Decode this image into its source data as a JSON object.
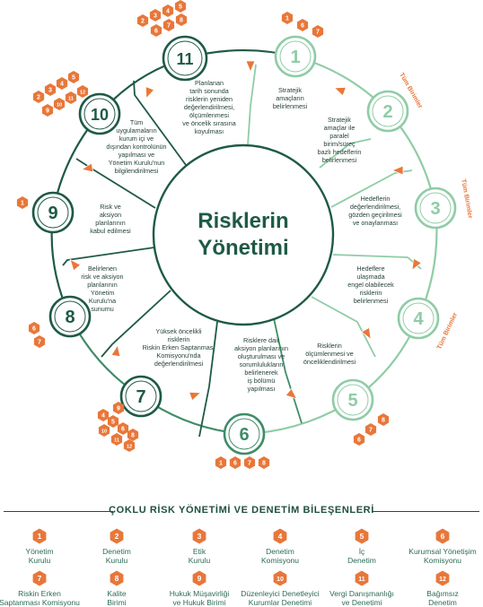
{
  "center_title": [
    "Risklerin",
    "Yönetimi"
  ],
  "steps": [
    {
      "num": "1",
      "text": "Stratejik\namaçların\nbelirlenmesi",
      "badges": [
        "1",
        "6",
        "7"
      ],
      "side_label": ""
    },
    {
      "num": "2",
      "text": "Stratejik\namaçlar ile\nparalel\nbirim/süreç\nbazlı hedeflerin\nbelirlenmesi",
      "badges": [],
      "side_label": "Tüm Birimler"
    },
    {
      "num": "3",
      "text": "Hedeflerin\ndeğerlendirilmesi,\ngözden geçirilmesi\nve onaylanması",
      "badges": [],
      "side_label": "Tüm Birimler"
    },
    {
      "num": "4",
      "text": "Hedeflere\nulaşmada\nengel olabilecek\nrisklerin\nbelirlenmesi",
      "badges": [],
      "side_label": "Tüm Birimler"
    },
    {
      "num": "5",
      "text": "Risklerin\nölçümlenmesi ve\nönceliklendirilmesi",
      "badges": [
        "6",
        "7",
        "8"
      ],
      "side_label": ""
    },
    {
      "num": "6",
      "text": "Risklere dair\naksiyon planlarının\noluşturulması ve\nsorumlulukların\nbelirlenerek\niş bölümü\nyapılması",
      "badges": [
        "1",
        "6",
        "7",
        "8"
      ],
      "side_label": ""
    },
    {
      "num": "7",
      "text": "Yüksek öncelikli\nrisklerin\nRiskin Erken Saptanması\nKomisyonu'nda\ndeğerlendirilmesi",
      "badges": [
        "4",
        "5",
        "6",
        "8",
        "9",
        "10",
        "11",
        "12"
      ],
      "side_label": ""
    },
    {
      "num": "8",
      "text": "Belirlenen\nrisk ve aksiyon\nplanlarının\nYönetim\nKurulu'na\nsunumu",
      "badges": [
        "6",
        "7"
      ],
      "side_label": ""
    },
    {
      "num": "9",
      "text": "Risk ve\naksiyon\nplanlarının\nkabul edilmesi",
      "badges": [
        "1"
      ],
      "side_label": ""
    },
    {
      "num": "10",
      "text": "Tüm\nuygulamaların\nkurum içi ve\ndışından kontrolünün\nyapılması ve\nYönetim Kurulu'nun\nbilgilendirilmesi",
      "badges": [
        "2",
        "3",
        "4",
        "5",
        "9",
        "10",
        "11",
        "12"
      ],
      "side_label": ""
    },
    {
      "num": "11",
      "text": "Planlanan\ntarih sonunda\nrisklerin yeniden\ndeğerlendirilmesi,\nölçümlenmesi\nve öncelik sırasına\nkoyulması",
      "badges": [
        "2",
        "3",
        "4",
        "5",
        "6",
        "7",
        "8"
      ],
      "side_label": ""
    }
  ],
  "legend": {
    "title": "ÇOKLU RİSK YÖNETİMİ VE DENETİM BİLEŞENLERİ",
    "items": [
      {
        "num": "1",
        "label": "Yönetim\nKurulu"
      },
      {
        "num": "2",
        "label": "Denetim\nKurulu"
      },
      {
        "num": "3",
        "label": "Etik\nKurulu"
      },
      {
        "num": "4",
        "label": "Denetim\nKomisyonu"
      },
      {
        "num": "5",
        "label": "İç\nDenetim"
      },
      {
        "num": "6",
        "label": "Kurumsal Yönetişim\nKomisyonu"
      },
      {
        "num": "7",
        "label": "Riskin Erken\nSaptanması Komisyonu"
      },
      {
        "num": "8",
        "label": "Kalite\nBirimi"
      },
      {
        "num": "9",
        "label": "Hukuk Müşavirliği\nve Hukuk Birimi"
      },
      {
        "num": "10",
        "label": "Düzenleyici Denetleyici\nKurumlar Denetimi"
      },
      {
        "num": "11",
        "label": "Vergi Danışmanlığı\nve Denetimi"
      },
      {
        "num": "12",
        "label": "Bağımsız\nDenetim"
      }
    ]
  },
  "colors": {
    "dark_green": "#1e5a45",
    "mid_green": "#3f8c68",
    "light_green": "#8fcca6",
    "orange": "#e8773a",
    "node_fill": "#ffffff"
  }
}
